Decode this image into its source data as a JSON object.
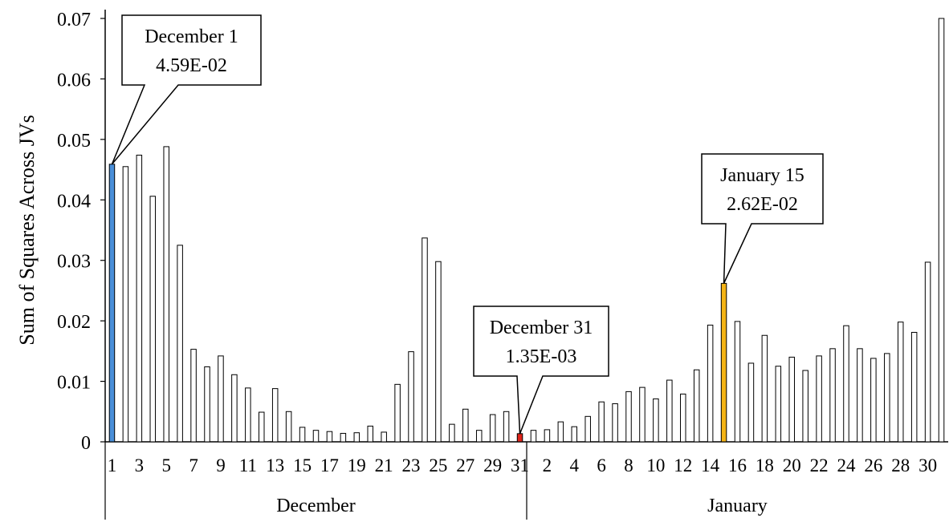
{
  "chart_data": {
    "type": "bar",
    "ylabel": "Sum of Squares Across JVs",
    "xlabel": "",
    "ylim": [
      0,
      0.07
    ],
    "yticks": [
      "0",
      "0.01",
      "0.02",
      "0.03",
      "0.04",
      "0.05",
      "0.06",
      "0.07"
    ],
    "groups": [
      {
        "name": "December",
        "categories": [
          "1",
          "2",
          "3",
          "4",
          "5",
          "6",
          "7",
          "8",
          "9",
          "10",
          "11",
          "12",
          "13",
          "14",
          "15",
          "16",
          "17",
          "18",
          "19",
          "20",
          "21",
          "22",
          "23",
          "24",
          "25",
          "26",
          "27",
          "28",
          "29",
          "30",
          "31"
        ],
        "tick_labels": [
          "1",
          "3",
          "5",
          "7",
          "9",
          "11",
          "13",
          "15",
          "17",
          "19",
          "21",
          "23",
          "25",
          "27",
          "29",
          "31"
        ],
        "values": [
          0.0459,
          0.0455,
          0.0474,
          0.0406,
          0.0488,
          0.0325,
          0.0153,
          0.0124,
          0.0142,
          0.0111,
          0.0089,
          0.0049,
          0.0088,
          0.005,
          0.0024,
          0.0019,
          0.0017,
          0.0014,
          0.0015,
          0.0026,
          0.0016,
          0.0095,
          0.0149,
          0.0337,
          0.0298,
          0.0029,
          0.0054,
          0.0019,
          0.0045,
          0.005,
          0.00135
        ]
      },
      {
        "name": "January",
        "categories": [
          "1",
          "2",
          "3",
          "4",
          "5",
          "6",
          "7",
          "8",
          "9",
          "10",
          "11",
          "12",
          "13",
          "14",
          "15",
          "16",
          "17",
          "18",
          "19",
          "20",
          "21",
          "22",
          "23",
          "24",
          "25",
          "26",
          "27",
          "28",
          "29",
          "30",
          "31"
        ],
        "tick_labels": [
          "2",
          "4",
          "6",
          "8",
          "10",
          "12",
          "14",
          "16",
          "18",
          "20",
          "22",
          "24",
          "26",
          "28",
          "30"
        ],
        "values": [
          0.0019,
          0.002,
          0.0033,
          0.0025,
          0.0042,
          0.0066,
          0.0063,
          0.0083,
          0.009,
          0.0071,
          0.0102,
          0.0079,
          0.0119,
          0.0193,
          0.0262,
          0.0199,
          0.013,
          0.0176,
          0.0125,
          0.014,
          0.0118,
          0.0142,
          0.0154,
          0.0192,
          0.0154,
          0.0138,
          0.0146,
          0.0198,
          0.0181,
          0.0297,
          0.0735
        ]
      }
    ],
    "highlights": [
      {
        "group": 0,
        "index": 0,
        "color": "#4a8fd9",
        "line1": "December 1",
        "line2": "4.59E-02"
      },
      {
        "group": 0,
        "index": 30,
        "color": "#e0251b",
        "line1": "December 31",
        "line2": "1.35E-03"
      },
      {
        "group": 1,
        "index": 14,
        "color": "#f5b416",
        "line1": "January 15",
        "line2": "2.62E-02"
      }
    ],
    "bar_fill": "#ffffff",
    "bar_stroke": "#000000",
    "grid": false,
    "legend": "none"
  }
}
